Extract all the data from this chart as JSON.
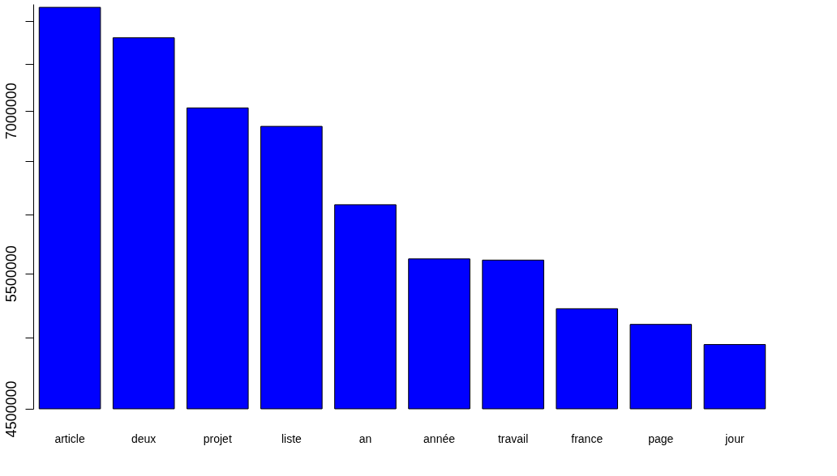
{
  "chart_data": {
    "type": "bar",
    "categories": [
      "article",
      "deux",
      "projet",
      "liste",
      "an",
      "année",
      "travail",
      "france",
      "page",
      "jour"
    ],
    "values": [
      8160000,
      7800000,
      7030000,
      6840000,
      6090000,
      5620000,
      5610000,
      5220000,
      5100000,
      4950000
    ],
    "color": "#0000ff",
    "log": "y",
    "ylim": [
      4500000,
      8200000
    ],
    "yticks": [
      4500000,
      {
        "value": 5000000,
        "label": null
      },
      5500000,
      {
        "value": 6000000,
        "label": null
      },
      {
        "value": 6500000,
        "label": null
      },
      7000000,
      {
        "value": 7500000,
        "label": null
      },
      {
        "value": 8000000,
        "label": null
      }
    ],
    "grid": false
  }
}
